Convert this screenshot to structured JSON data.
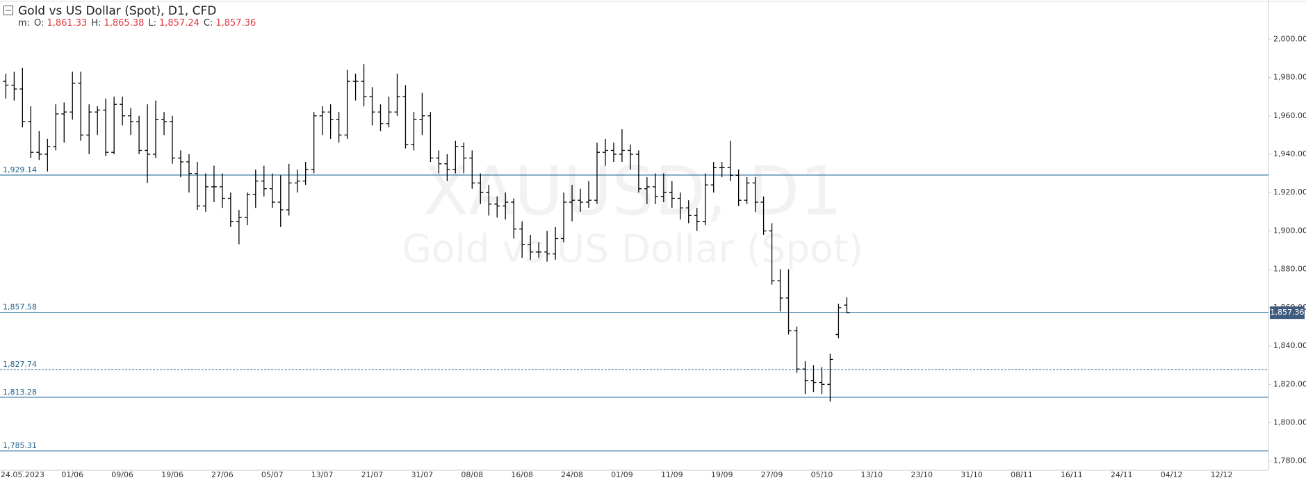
{
  "chart_data": {
    "type": "ohlc",
    "title": "Gold vs US Dollar (Spot),  D1,  CFD",
    "ohlc_legend": {
      "prefix": "m:",
      "items": [
        {
          "label": "O:",
          "value": "1,861.33"
        },
        {
          "label": "H:",
          "value": "1,865.38"
        },
        {
          "label": "L:",
          "value": "1,857.24"
        },
        {
          "label": "C:",
          "value": "1,857.36"
        }
      ]
    },
    "watermark": [
      "XAUUSD, D1",
      "Gold vs US Dollar (Spot)"
    ],
    "bar_color": "#000000",
    "level_color": "#3a7ca5",
    "categories": [
      null,
      null,
      "24.05.2023",
      null,
      null,
      null,
      null,
      null,
      "01/06",
      null,
      null,
      null,
      null,
      null,
      "09/06",
      null,
      null,
      null,
      null,
      null,
      "19/06",
      null,
      null,
      null,
      null,
      null,
      "27/06",
      null,
      null,
      null,
      null,
      null,
      "05/07",
      null,
      null,
      null,
      null,
      null,
      "13/07",
      null,
      null,
      null,
      null,
      null,
      "21/07",
      null,
      null,
      null,
      null,
      null,
      "31/07",
      null,
      null,
      null,
      null,
      null,
      "08/08",
      null,
      null,
      null,
      null,
      null,
      "16/08",
      null,
      null,
      null,
      null,
      null,
      "24/08",
      null,
      null,
      null,
      null,
      null,
      "01/09",
      null,
      null,
      null,
      null,
      null,
      "11/09",
      null,
      null,
      null,
      null,
      null,
      "19/09",
      null,
      null,
      null,
      null,
      null,
      "27/09",
      null,
      null,
      null,
      null,
      null,
      "05/10",
      null,
      null,
      null,
      null,
      null,
      "13/10",
      null,
      null,
      null,
      null,
      null,
      "23/10",
      null,
      null,
      null,
      null,
      null,
      "31/10",
      null,
      null,
      null,
      null,
      null,
      "08/11",
      null,
      null,
      null,
      null,
      null,
      "16/11",
      null,
      null,
      null,
      null,
      null,
      "24/11",
      null,
      null,
      null,
      null,
      null,
      "04/12",
      null,
      null,
      null,
      null,
      null,
      "12/12",
      null
    ],
    "open": [
      1978,
      1976,
      1974,
      1957,
      1941,
      1940,
      1944,
      1961,
      1962,
      1977,
      1950,
      1962,
      1963,
      1941,
      1966,
      1960,
      1957,
      1942,
      1940,
      1958,
      1957,
      1938,
      1936,
      1930,
      1913,
      1923,
      1923,
      1917,
      1905,
      1907,
      1919,
      1926,
      1922,
      1915,
      1911,
      1925,
      1926,
      1932,
      1960,
      1962,
      1958,
      1950,
      1978,
      1978,
      1970,
      1962,
      1956,
      1962,
      1970,
      1945,
      1958,
      1960,
      1938,
      1935,
      1932,
      1944,
      1938,
      1925,
      1920,
      1914,
      1913,
      1915,
      1901,
      1893,
      1889,
      1889,
      1888,
      1896,
      1915,
      1916,
      1915,
      1916,
      1941,
      1942,
      1940,
      1942,
      1940,
      1922,
      1923,
      1918,
      1920,
      1917,
      1912,
      1908,
      1905,
      1924,
      1933,
      1933,
      1929,
      1916,
      1925,
      1915,
      1900,
      1874,
      1865,
      1848,
      1828,
      1822,
      1821,
      1820,
      1846,
      1861.33,
      null,
      null,
      null,
      null,
      null,
      null,
      null,
      null,
      null,
      null,
      null,
      null,
      null,
      null,
      null,
      null,
      null,
      null,
      null,
      null,
      null,
      null,
      null,
      null,
      null,
      null,
      null,
      null,
      null,
      null,
      null,
      null,
      null,
      null,
      null,
      null,
      null,
      null,
      null,
      null,
      null,
      null,
      null,
      null,
      null,
      null
    ],
    "high": [
      1982,
      1983,
      1985,
      1965,
      1952,
      1948,
      1966,
      1967,
      1983,
      1983,
      1966,
      1965,
      1969,
      1970,
      1970,
      1964,
      1960,
      1966,
      1968,
      1962,
      1960,
      1942,
      1940,
      1936,
      1930,
      1934,
      1930,
      1920,
      1911,
      1920,
      1932,
      1934,
      1930,
      1929,
      1935,
      1932,
      1936,
      1962,
      1965,
      1966,
      1962,
      1984,
      1982,
      1987,
      1975,
      1966,
      1970,
      1982,
      1976,
      1962,
      1972,
      1962,
      1942,
      1940,
      1947,
      1946,
      1942,
      1930,
      1924,
      1918,
      1920,
      1917,
      1905,
      1898,
      1894,
      1900,
      1902,
      1920,
      1924,
      1922,
      1926,
      1946,
      1948,
      1946,
      1953,
      1945,
      1942,
      1928,
      1930,
      1930,
      1926,
      1920,
      1916,
      1912,
      1930,
      1936,
      1936,
      1947,
      1932,
      1928,
      1928,
      1918,
      1904,
      1880,
      1880,
      1850,
      1832,
      1830,
      1829,
      1836,
      1862,
      1865.38,
      null,
      null,
      null,
      null,
      null,
      null,
      null,
      null,
      null,
      null,
      null,
      null,
      null,
      null,
      null,
      null,
      null,
      null,
      null,
      null,
      null,
      null,
      null,
      null,
      null,
      null,
      null,
      null,
      null,
      null,
      null,
      null,
      null,
      null,
      null,
      null,
      null,
      null,
      null,
      null,
      null,
      null,
      null,
      null,
      null,
      null
    ],
    "low": [
      1969,
      1968,
      1954,
      1938,
      1937,
      1931,
      1942,
      1946,
      1958,
      1947,
      1940,
      1950,
      1939,
      1940,
      1955,
      1950,
      1940,
      1925,
      1938,
      1950,
      1935,
      1928,
      1920,
      1911,
      1910,
      1915,
      1912,
      1902,
      1893,
      1903,
      1912,
      1918,
      1912,
      1902,
      1908,
      1920,
      1924,
      1930,
      1950,
      1948,
      1946,
      1948,
      1968,
      1965,
      1955,
      1952,
      1954,
      1960,
      1943,
      1942,
      1950,
      1936,
      1930,
      1926,
      1930,
      1930,
      1922,
      1914,
      1908,
      1907,
      1906,
      1896,
      1886,
      1885,
      1886,
      1884,
      1885,
      1894,
      1905,
      1910,
      1912,
      1914,
      1934,
      1936,
      1936,
      1932,
      1920,
      1914,
      1914,
      1915,
      1912,
      1906,
      1904,
      1900,
      1903,
      1920,
      1928,
      1926,
      1913,
      1914,
      1910,
      1898,
      1872,
      1858,
      1846,
      1826,
      1815,
      1816,
      1815,
      1811,
      1844,
      1857.24,
      null,
      null,
      null,
      null,
      null,
      null,
      null,
      null,
      null,
      null,
      null,
      null,
      null,
      null,
      null,
      null,
      null,
      null,
      null,
      null,
      null,
      null,
      null,
      null,
      null,
      null,
      null,
      null,
      null,
      null,
      null,
      null,
      null,
      null,
      null,
      null,
      null,
      null,
      null,
      null,
      null,
      null,
      null,
      null,
      null,
      null
    ],
    "close": [
      1976,
      1974,
      1957,
      1941,
      1940,
      1944,
      1961,
      1962,
      1977,
      1950,
      1962,
      1963,
      1941,
      1966,
      1960,
      1957,
      1942,
      1940,
      1958,
      1957,
      1938,
      1936,
      1930,
      1913,
      1923,
      1923,
      1917,
      1905,
      1907,
      1919,
      1926,
      1922,
      1915,
      1911,
      1925,
      1926,
      1932,
      1960,
      1962,
      1958,
      1950,
      1978,
      1978,
      1970,
      1962,
      1956,
      1962,
      1970,
      1945,
      1958,
      1960,
      1938,
      1935,
      1932,
      1944,
      1938,
      1925,
      1920,
      1914,
      1913,
      1915,
      1901,
      1893,
      1889,
      1889,
      1888,
      1896,
      1915,
      1916,
      1915,
      1916,
      1941,
      1942,
      1940,
      1942,
      1940,
      1922,
      1923,
      1918,
      1920,
      1917,
      1912,
      1908,
      1905,
      1924,
      1933,
      1933,
      1929,
      1916,
      1925,
      1915,
      1900,
      1874,
      1865,
      1848,
      1828,
      1822,
      1821,
      1820,
      1833,
      1860,
      1857.36,
      null,
      null,
      null,
      null,
      null,
      null,
      null,
      null,
      null,
      null,
      null,
      null,
      null,
      null,
      null,
      null,
      null,
      null,
      null,
      null,
      null,
      null,
      null,
      null,
      null,
      null,
      null,
      null,
      null,
      null,
      null,
      null,
      null,
      null,
      null,
      null,
      null,
      null,
      null,
      null,
      null,
      null,
      null,
      null,
      null,
      null
    ],
    "ylim": [
      1775.2,
      2020.4
    ],
    "yticks": [
      {
        "value": 1780,
        "label": "1,780.00"
      },
      {
        "value": 1800,
        "label": "1,800.00"
      },
      {
        "value": 1820,
        "label": "1,820.00"
      },
      {
        "value": 1840,
        "label": "1,840.00"
      },
      {
        "value": 1860,
        "label": "1,860.00"
      },
      {
        "value": 1880,
        "label": "1,880.00"
      },
      {
        "value": 1900,
        "label": "1,900.00"
      },
      {
        "value": 1920,
        "label": "1,920.00"
      },
      {
        "value": 1940,
        "label": "1,940.00"
      },
      {
        "value": 1960,
        "label": "1,960.00"
      },
      {
        "value": 1980,
        "label": "1,980.00"
      },
      {
        "value": 2000,
        "label": "2,000.00"
      }
    ],
    "levels": [
      {
        "value": 1929.14,
        "label": "1,929.14",
        "style": "solid"
      },
      {
        "value": 1857.58,
        "label": "1,857.58",
        "style": "solid"
      },
      {
        "value": 1827.74,
        "label": "1,827.74",
        "style": "dashed"
      },
      {
        "value": 1813.28,
        "label": "1,813.28",
        "style": "solid"
      },
      {
        "value": 1785.31,
        "label": "1,785.31",
        "style": "solid"
      }
    ],
    "last_price": {
      "value": 1857.36,
      "label": "1,857.36"
    }
  }
}
